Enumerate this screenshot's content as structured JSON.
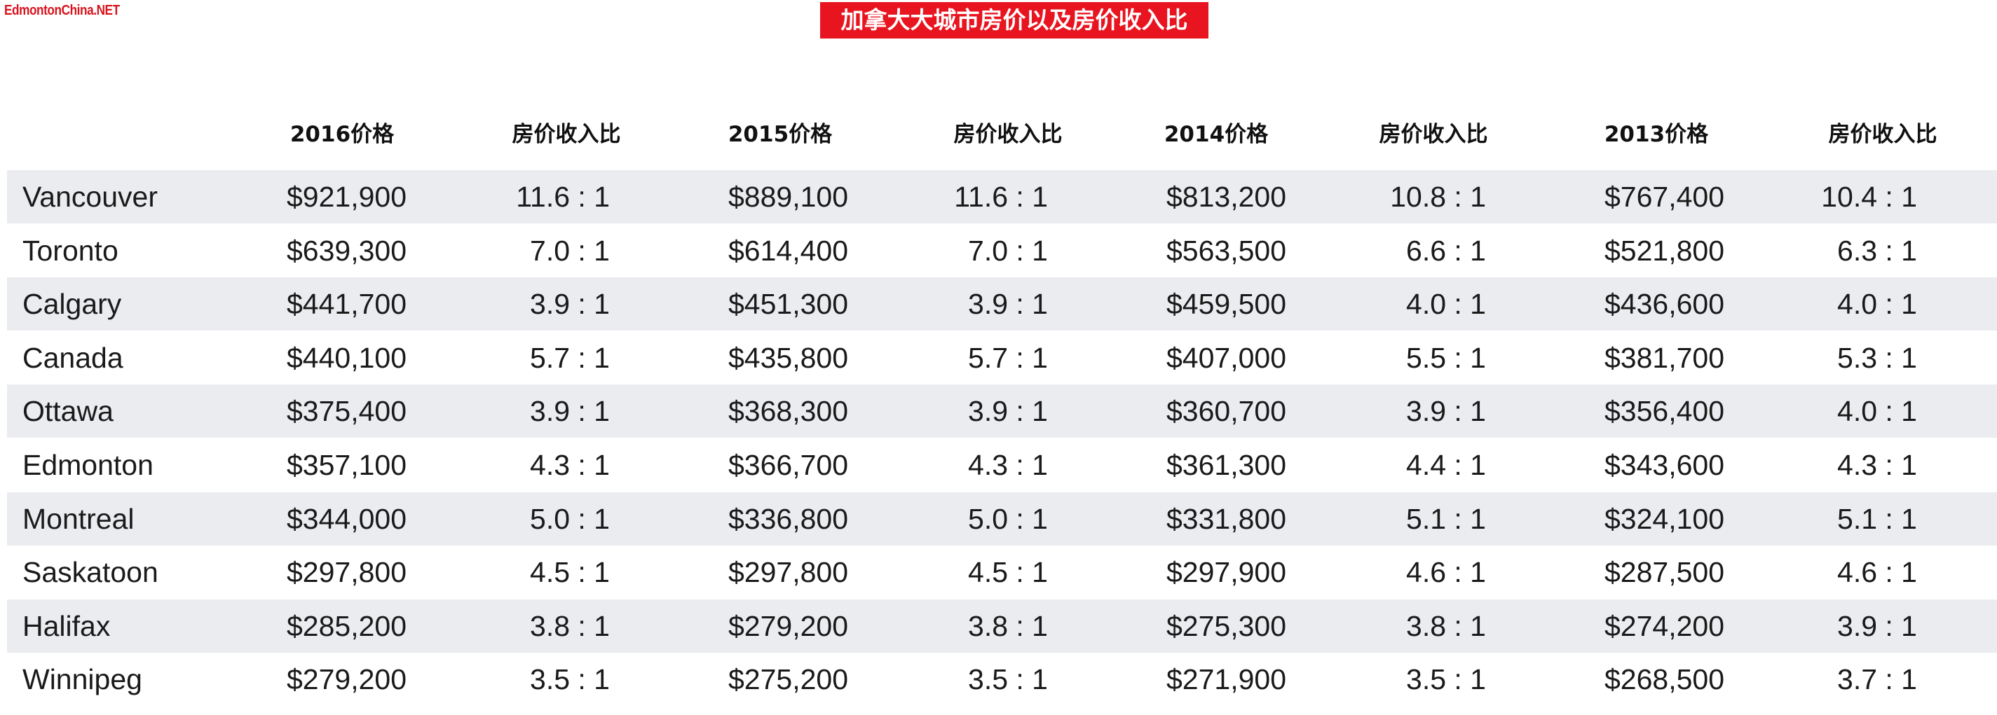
{
  "watermark": "EdmontonChina.NET",
  "title": "加拿大大城市房价以及房价收入比",
  "chart_data": {
    "type": "table",
    "title": "加拿大大城市房价以及房价收入比",
    "columns": [
      "",
      "2016价格",
      "房价收入比",
      "2015价格",
      "房价收入比",
      "2014价格",
      "房价收入比",
      "2013价格",
      "房价收入比"
    ],
    "rows": [
      [
        "Vancouver",
        "$921,900",
        "11.6 : 1",
        "$889,100",
        "11.6 : 1",
        "$813,200",
        "10.8 : 1",
        "$767,400",
        "10.4 : 1"
      ],
      [
        "Toronto",
        "$639,300",
        "7.0 : 1",
        "$614,400",
        "7.0 : 1",
        "$563,500",
        "6.6 : 1",
        "$521,800",
        "6.3 : 1"
      ],
      [
        "Calgary",
        "$441,700",
        "3.9 : 1",
        "$451,300",
        "3.9 : 1",
        "$459,500",
        "4.0 : 1",
        "$436,600",
        "4.0 : 1"
      ],
      [
        "Canada",
        "$440,100",
        "5.7 : 1",
        "$435,800",
        "5.7 : 1",
        "$407,000",
        "5.5 : 1",
        "$381,700",
        "5.3 : 1"
      ],
      [
        "Ottawa",
        "$375,400",
        "3.9 : 1",
        "$368,300",
        "3.9 : 1",
        "$360,700",
        "3.9 : 1",
        "$356,400",
        "4.0 : 1"
      ],
      [
        "Edmonton",
        "$357,100",
        "4.3 : 1",
        "$366,700",
        "4.3 : 1",
        "$361,300",
        "4.4 : 1",
        "$343,600",
        "4.3 : 1"
      ],
      [
        "Montreal",
        "$344,000",
        "5.0 : 1",
        "$336,800",
        "5.0 : 1",
        "$331,800",
        "5.1 : 1",
        "$324,100",
        "5.1 : 1"
      ],
      [
        "Saskatoon",
        "$297,800",
        "4.5 : 1",
        "$297,800",
        "4.5 : 1",
        "$297,900",
        "4.6 : 1",
        "$287,500",
        "4.6 : 1"
      ],
      [
        "Halifax",
        "$285,200",
        "3.8 : 1",
        "$279,200",
        "3.8 : 1",
        "$275,300",
        "3.8 : 1",
        "$274,200",
        "3.9 : 1"
      ],
      [
        "Winnipeg",
        "$279,200",
        "3.5 : 1",
        "$275,200",
        "3.5 : 1",
        "$271,900",
        "3.5 : 1",
        "$268,500",
        "3.7 : 1"
      ]
    ]
  },
  "colors": {
    "title_background": "#e8141f",
    "watermark": "#d8141d",
    "row_shade": "#ebecf0",
    "text": "#1a1a1a"
  }
}
